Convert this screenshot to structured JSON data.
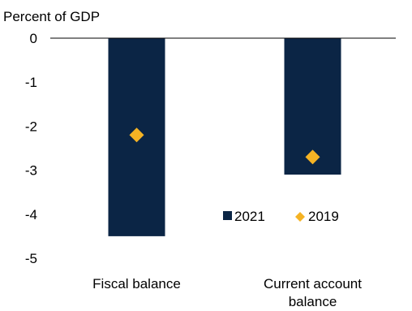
{
  "chart_data": {
    "type": "bar",
    "title": "",
    "ylabel": "Percent of GDP",
    "xlabel": "",
    "categories": [
      [
        "Fiscal balance"
      ],
      [
        "Current account",
        "balance"
      ]
    ],
    "ylim": [
      -5,
      0
    ],
    "yticks": [
      0,
      -1,
      -2,
      -3,
      -4,
      -5
    ],
    "grid": false,
    "legend_position": "inside-lower-right",
    "series": [
      {
        "name": "2021",
        "kind": "bar",
        "color": "#0b2545",
        "values": [
          -4.5,
          -3.1
        ]
      },
      {
        "name": "2019",
        "kind": "marker-diamond",
        "color": "#f5b324",
        "values": [
          -2.2,
          -2.7
        ]
      }
    ]
  }
}
